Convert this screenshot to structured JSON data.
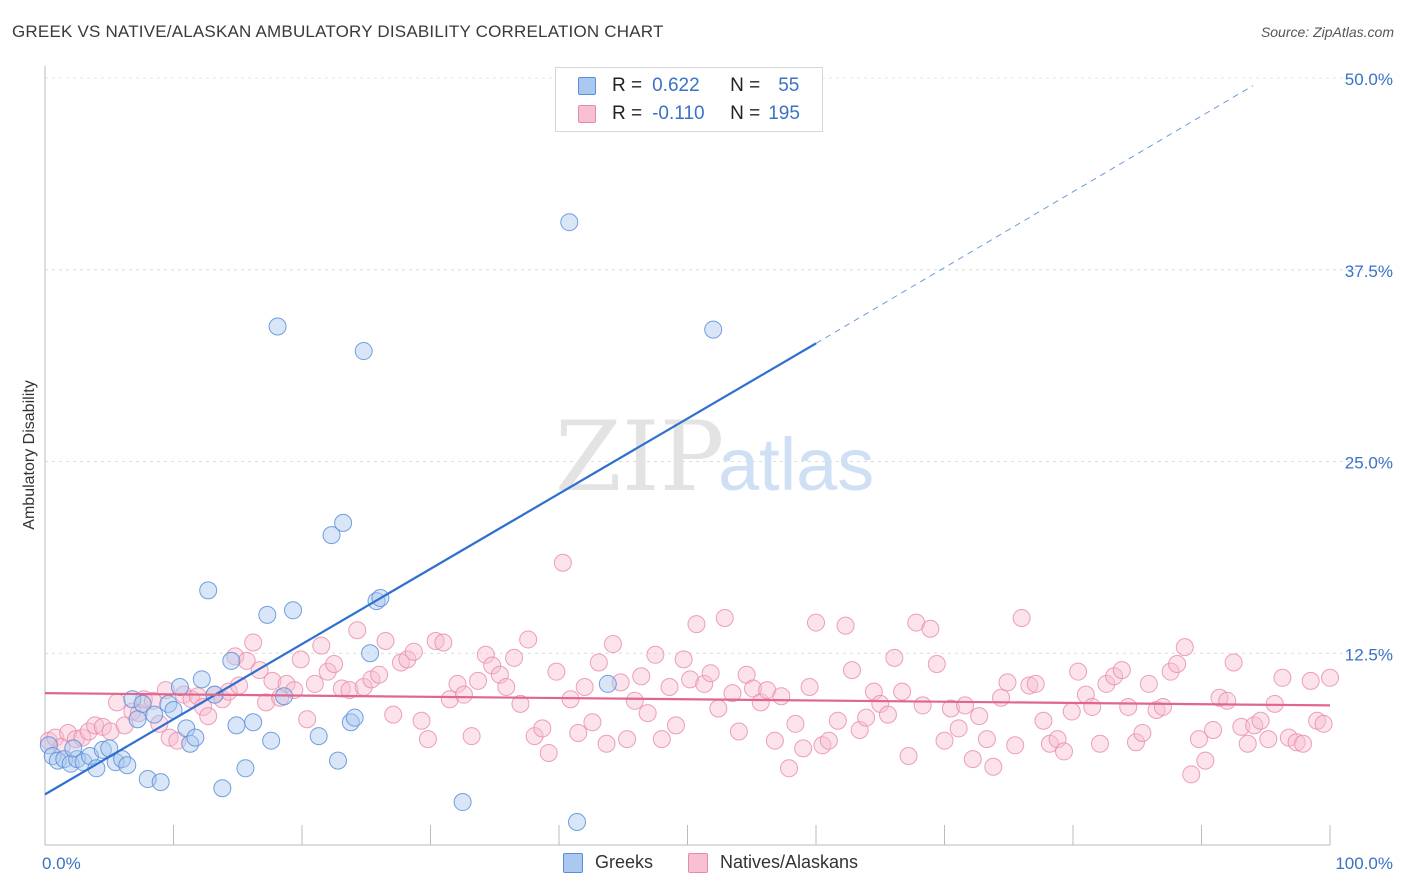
{
  "header": {
    "title": "GREEK VS NATIVE/ALASKAN AMBULATORY DISABILITY CORRELATION CHART",
    "source": "Source: ZipAtlas.com"
  },
  "watermark": {
    "zip": "ZIP",
    "atlas": "atlas"
  },
  "legend": {
    "greeks": {
      "r_label": "R =",
      "r_value": "0.622",
      "n_label": "N =",
      "n_value": "55"
    },
    "natives": {
      "r_label": "R =",
      "r_value": "-0.110",
      "n_label": "N =",
      "n_value": "195"
    }
  },
  "colors": {
    "greek_fill": "#aac8f0",
    "greek_stroke": "#5a8fd8",
    "greek_line": "#2f6fd0",
    "native_fill": "#f7bfd2",
    "native_stroke": "#e88aa9",
    "native_line": "#e0668f",
    "axis_text": "#3a72c4"
  },
  "chart_data": {
    "type": "scatter",
    "title": "GREEK VS NATIVE/ALASKAN AMBULATORY DISABILITY CORRELATION CHART",
    "xlabel": "",
    "ylabel": "Ambulatory Disability",
    "xlim": [
      0,
      100
    ],
    "ylim": [
      0,
      50
    ],
    "x_tick_labels": [
      "0.0%",
      "100.0%"
    ],
    "y_ticks": [
      12.5,
      25.0,
      37.5,
      50.0
    ],
    "y_tick_labels": [
      "12.5%",
      "25.0%",
      "37.5%",
      "50.0%"
    ],
    "grid": true,
    "series": [
      {
        "name": "Greeks",
        "r": 0.622,
        "n": 55,
        "trend": {
          "x_start": 0,
          "y_start": 3.3,
          "x_end": 60,
          "y_end": 32.7,
          "dashed_to_x": 94,
          "dashed_to_y": 49.5
        },
        "points": [
          [
            0.3,
            6.5
          ],
          [
            0.6,
            5.8
          ],
          [
            1.0,
            5.5
          ],
          [
            1.5,
            5.6
          ],
          [
            2.0,
            5.3
          ],
          [
            2.5,
            5.6
          ],
          [
            3.0,
            5.4
          ],
          [
            3.5,
            5.8
          ],
          [
            4.0,
            5.0
          ],
          [
            4.5,
            6.2
          ],
          [
            5.0,
            6.3
          ],
          [
            5.5,
            5.4
          ],
          [
            6.0,
            5.6
          ],
          [
            6.4,
            5.2
          ],
          [
            6.8,
            9.5
          ],
          [
            7.2,
            8.2
          ],
          [
            7.6,
            9.2
          ],
          [
            8.0,
            4.3
          ],
          [
            8.5,
            8.5
          ],
          [
            9.0,
            4.1
          ],
          [
            9.6,
            9.2
          ],
          [
            10.0,
            8.8
          ],
          [
            10.5,
            10.3
          ],
          [
            11.0,
            7.6
          ],
          [
            11.3,
            6.6
          ],
          [
            11.7,
            7.0
          ],
          [
            12.2,
            10.8
          ],
          [
            12.7,
            16.6
          ],
          [
            13.2,
            9.8
          ],
          [
            13.8,
            3.7
          ],
          [
            14.5,
            12.0
          ],
          [
            14.9,
            7.8
          ],
          [
            15.6,
            5.0
          ],
          [
            16.2,
            8.0
          ],
          [
            17.3,
            15.0
          ],
          [
            17.6,
            6.8
          ],
          [
            18.1,
            33.8
          ],
          [
            18.6,
            9.7
          ],
          [
            19.3,
            15.3
          ],
          [
            21.3,
            7.1
          ],
          [
            22.3,
            20.2
          ],
          [
            22.8,
            5.5
          ],
          [
            23.2,
            21.0
          ],
          [
            23.8,
            8.0
          ],
          [
            24.1,
            8.3
          ],
          [
            24.8,
            32.2
          ],
          [
            25.3,
            12.5
          ],
          [
            25.8,
            15.9
          ],
          [
            26.1,
            16.1
          ],
          [
            32.5,
            2.8
          ],
          [
            40.8,
            40.6
          ],
          [
            41.4,
            1.5
          ],
          [
            43.8,
            10.5
          ],
          [
            52.0,
            33.6
          ],
          [
            2.2,
            6.3
          ]
        ]
      },
      {
        "name": "Natives/Alaskans",
        "r": -0.11,
        "n": 195,
        "trend": {
          "x_start": 0,
          "y_start": 9.9,
          "x_end": 100,
          "y_end": 9.1
        },
        "points": [
          [
            0.3,
            6.8
          ],
          [
            0.8,
            7.0
          ],
          [
            1.3,
            6.4
          ],
          [
            1.8,
            7.3
          ],
          [
            2.4,
            6.9
          ],
          [
            2.9,
            7.0
          ],
          [
            3.4,
            7.4
          ],
          [
            3.9,
            7.8
          ],
          [
            4.5,
            7.7
          ],
          [
            5.1,
            7.4
          ],
          [
            5.6,
            9.3
          ],
          [
            6.2,
            7.8
          ],
          [
            6.8,
            8.7
          ],
          [
            7.3,
            8.6
          ],
          [
            7.7,
            9.5
          ],
          [
            8.4,
            9.4
          ],
          [
            8.9,
            7.9
          ],
          [
            9.4,
            10.1
          ],
          [
            9.7,
            7.0
          ],
          [
            10.3,
            6.8
          ],
          [
            10.8,
            9.8
          ],
          [
            11.4,
            9.5
          ],
          [
            11.9,
            9.7
          ],
          [
            12.3,
            9.0
          ],
          [
            12.7,
            8.4
          ],
          [
            13.2,
            9.8
          ],
          [
            13.8,
            9.5
          ],
          [
            14.3,
            10.0
          ],
          [
            14.8,
            12.3
          ],
          [
            15.1,
            10.4
          ],
          [
            15.7,
            12.0
          ],
          [
            16.2,
            13.2
          ],
          [
            16.7,
            11.4
          ],
          [
            17.2,
            9.3
          ],
          [
            17.7,
            10.7
          ],
          [
            18.3,
            9.6
          ],
          [
            18.8,
            10.5
          ],
          [
            19.4,
            10.1
          ],
          [
            19.9,
            12.1
          ],
          [
            20.4,
            8.2
          ],
          [
            21.0,
            10.5
          ],
          [
            21.5,
            13.0
          ],
          [
            22.0,
            11.3
          ],
          [
            22.5,
            11.8
          ],
          [
            23.1,
            10.2
          ],
          [
            23.7,
            10.1
          ],
          [
            24.3,
            14.0
          ],
          [
            24.8,
            10.3
          ],
          [
            25.4,
            10.8
          ],
          [
            26.0,
            11.1
          ],
          [
            26.5,
            13.3
          ],
          [
            27.1,
            8.5
          ],
          [
            27.7,
            11.9
          ],
          [
            28.2,
            12.1
          ],
          [
            28.7,
            12.6
          ],
          [
            29.3,
            8.1
          ],
          [
            29.8,
            6.9
          ],
          [
            30.4,
            13.3
          ],
          [
            31.0,
            13.2
          ],
          [
            31.5,
            9.5
          ],
          [
            32.1,
            10.5
          ],
          [
            32.6,
            9.8
          ],
          [
            33.2,
            7.1
          ],
          [
            33.7,
            10.7
          ],
          [
            34.3,
            12.4
          ],
          [
            34.8,
            11.7
          ],
          [
            35.4,
            11.1
          ],
          [
            35.9,
            10.3
          ],
          [
            36.5,
            12.2
          ],
          [
            37.0,
            9.2
          ],
          [
            37.6,
            13.4
          ],
          [
            38.1,
            7.1
          ],
          [
            38.7,
            7.6
          ],
          [
            39.2,
            6.0
          ],
          [
            39.8,
            11.3
          ],
          [
            40.3,
            18.4
          ],
          [
            40.9,
            9.5
          ],
          [
            41.5,
            7.3
          ],
          [
            42.0,
            10.3
          ],
          [
            42.6,
            8.0
          ],
          [
            43.1,
            11.9
          ],
          [
            43.7,
            6.6
          ],
          [
            44.2,
            13.1
          ],
          [
            44.8,
            10.6
          ],
          [
            45.3,
            6.9
          ],
          [
            45.9,
            9.4
          ],
          [
            46.4,
            11.0
          ],
          [
            46.9,
            8.6
          ],
          [
            47.5,
            12.4
          ],
          [
            48.0,
            6.9
          ],
          [
            48.6,
            10.3
          ],
          [
            49.1,
            7.8
          ],
          [
            49.7,
            12.1
          ],
          [
            50.2,
            10.8
          ],
          [
            50.7,
            14.4
          ],
          [
            51.3,
            10.5
          ],
          [
            51.8,
            11.2
          ],
          [
            52.4,
            8.9
          ],
          [
            52.9,
            14.8
          ],
          [
            53.5,
            9.9
          ],
          [
            54.0,
            7.4
          ],
          [
            54.6,
            11.1
          ],
          [
            55.1,
            10.2
          ],
          [
            55.7,
            9.3
          ],
          [
            56.2,
            10.1
          ],
          [
            56.8,
            6.8
          ],
          [
            57.3,
            9.7
          ],
          [
            57.9,
            5.0
          ],
          [
            58.4,
            7.9
          ],
          [
            59.0,
            6.3
          ],
          [
            59.5,
            10.3
          ],
          [
            60.0,
            14.5
          ],
          [
            60.5,
            6.5
          ],
          [
            61.0,
            6.8
          ],
          [
            61.7,
            8.1
          ],
          [
            62.3,
            14.3
          ],
          [
            62.8,
            11.4
          ],
          [
            63.4,
            7.5
          ],
          [
            63.9,
            8.3
          ],
          [
            64.5,
            10.0
          ],
          [
            65.0,
            9.2
          ],
          [
            65.6,
            8.5
          ],
          [
            66.1,
            12.2
          ],
          [
            66.7,
            10.0
          ],
          [
            67.2,
            5.8
          ],
          [
            67.8,
            14.5
          ],
          [
            68.3,
            9.1
          ],
          [
            68.9,
            14.1
          ],
          [
            69.4,
            11.8
          ],
          [
            70.0,
            6.8
          ],
          [
            70.5,
            8.9
          ],
          [
            71.1,
            7.6
          ],
          [
            71.6,
            9.1
          ],
          [
            72.2,
            5.6
          ],
          [
            72.7,
            8.4
          ],
          [
            73.3,
            6.9
          ],
          [
            73.8,
            5.1
          ],
          [
            74.4,
            9.6
          ],
          [
            74.9,
            10.6
          ],
          [
            75.5,
            6.5
          ],
          [
            76.0,
            14.8
          ],
          [
            76.6,
            10.4
          ],
          [
            77.1,
            10.5
          ],
          [
            77.7,
            8.1
          ],
          [
            78.2,
            6.6
          ],
          [
            78.8,
            6.9
          ],
          [
            79.3,
            6.1
          ],
          [
            79.9,
            8.7
          ],
          [
            80.4,
            11.3
          ],
          [
            81.0,
            9.8
          ],
          [
            81.5,
            9.0
          ],
          [
            82.1,
            6.6
          ],
          [
            82.6,
            10.5
          ],
          [
            83.2,
            11.0
          ],
          [
            83.8,
            11.4
          ],
          [
            84.3,
            9.0
          ],
          [
            84.9,
            6.7
          ],
          [
            85.4,
            7.3
          ],
          [
            85.9,
            10.5
          ],
          [
            86.5,
            8.8
          ],
          [
            87.0,
            9.0
          ],
          [
            87.6,
            11.3
          ],
          [
            88.1,
            11.8
          ],
          [
            88.7,
            12.9
          ],
          [
            89.2,
            4.6
          ],
          [
            89.8,
            6.9
          ],
          [
            90.3,
            5.5
          ],
          [
            90.9,
            7.5
          ],
          [
            91.4,
            9.6
          ],
          [
            92.0,
            9.4
          ],
          [
            92.5,
            11.9
          ],
          [
            93.1,
            7.7
          ],
          [
            93.6,
            6.6
          ],
          [
            94.1,
            7.8
          ],
          [
            94.6,
            8.1
          ],
          [
            95.2,
            6.9
          ],
          [
            95.7,
            9.2
          ],
          [
            96.3,
            10.9
          ],
          [
            96.8,
            7.0
          ],
          [
            97.4,
            6.7
          ],
          [
            97.9,
            6.6
          ],
          [
            98.5,
            10.7
          ],
          [
            99.0,
            8.1
          ],
          [
            99.5,
            7.9
          ],
          [
            100.0,
            10.9
          ]
        ]
      }
    ]
  }
}
